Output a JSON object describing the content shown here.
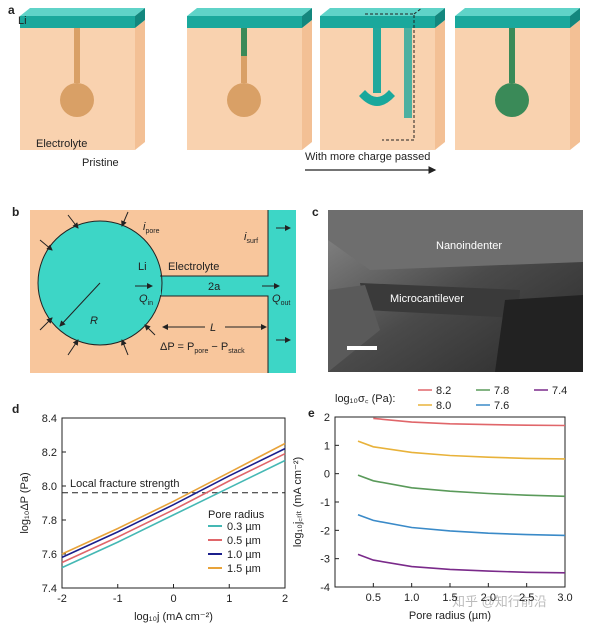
{
  "panel_labels": [
    "a",
    "b",
    "c",
    "d",
    "e"
  ],
  "panel_a": {
    "li": "Li",
    "electrolyte": "Electrolyte",
    "pristine": "Pristine",
    "more_charge": "With more charge passed"
  },
  "panel_b": {
    "i_pore": [
      "i",
      "pore"
    ],
    "li": "Li",
    "electrolyte": "Electrolyte",
    "i_surf": [
      "i",
      "surf"
    ],
    "two_a": "2a",
    "q_in": [
      "Q",
      "in"
    ],
    "q_out": [
      "Q",
      "out"
    ],
    "r": "R",
    "l": "L",
    "delta_p": [
      "ΔP = P",
      "pore",
      " − P",
      "stack"
    ]
  },
  "panel_c": {
    "nanoindenter": "Nanoindenter",
    "microcantilever": "Microcantilever"
  },
  "chart_data": [
    {
      "type": "line",
      "x_label": "log₁₀j (mA cm⁻²)",
      "y_label": "log₁₀ΔP (Pa)",
      "xlim": [
        -2,
        2
      ],
      "xticks": [
        -2,
        -1,
        0,
        1,
        2
      ],
      "ylim": [
        7.4,
        8.4
      ],
      "yticks": [
        7.4,
        7.6,
        7.8,
        {
          "value": 8,
          "label": "8.0"
        },
        8.2,
        8.4
      ],
      "x": [
        -2,
        -1,
        0,
        1,
        2
      ],
      "legend_title": "Pore radius",
      "series": [
        {
          "name": "0.3 µm",
          "color": "#45b8b4",
          "values": [
            7.52,
            7.67,
            7.83,
            7.99,
            8.15
          ]
        },
        {
          "name": "0.5 µm",
          "color": "#e0666a",
          "values": [
            7.55,
            7.7,
            7.86,
            8.03,
            8.19
          ]
        },
        {
          "name": "1.0 µm",
          "color": "#1b1f8c",
          "values": [
            7.58,
            7.73,
            7.89,
            8.06,
            8.22
          ]
        },
        {
          "name": "1.5 µm",
          "color": "#e8a33a",
          "values": [
            7.6,
            7.75,
            7.91,
            8.08,
            8.25
          ]
        }
      ],
      "hline": {
        "value": 7.96,
        "label": "Local fracture strength"
      }
    },
    {
      "type": "line",
      "x_label": "Pore radius (µm)",
      "y_label": "log₁₀j꜀ᵣᵢₜ (mA cm⁻²)",
      "xlim": [
        0,
        3
      ],
      "xticks": [
        0.5,
        {
          "value": 1,
          "label": "1.0"
        },
        1.5,
        {
          "value": 2,
          "label": "2.0"
        },
        2.5,
        {
          "value": 3,
          "label": "3.0"
        }
      ],
      "ylim": [
        -4,
        2
      ],
      "yticks": [
        -4,
        -3,
        -2,
        -1,
        0,
        1,
        2
      ],
      "x": [
        0.3,
        0.5,
        1,
        1.5,
        2,
        2.5,
        3
      ],
      "legend_title": "log₁₀σ꜀ (Pa):",
      "series": [
        {
          "name": "8.2",
          "color": "#e0666a",
          "values": [
            null,
            1.95,
            1.82,
            1.76,
            1.73,
            1.71,
            1.7
          ]
        },
        {
          "name": "8.0",
          "color": "#e8b23a",
          "values": [
            1.15,
            0.95,
            0.75,
            0.64,
            0.58,
            0.54,
            0.52
          ]
        },
        {
          "name": "7.8",
          "color": "#5a9a5a",
          "values": [
            -0.05,
            -0.25,
            -0.5,
            -0.62,
            -0.7,
            -0.76,
            -0.8
          ]
        },
        {
          "name": "7.6",
          "color": "#3a8ac8",
          "values": [
            -1.45,
            -1.65,
            -1.9,
            -2.02,
            -2.1,
            -2.15,
            -2.18
          ]
        },
        {
          "name": "7.4",
          "color": "#7a2a8a",
          "values": [
            -2.85,
            -3.05,
            -3.28,
            -3.38,
            -3.44,
            -3.48,
            -3.5
          ]
        }
      ]
    }
  ],
  "watermark": "知乎 @知行前沿"
}
